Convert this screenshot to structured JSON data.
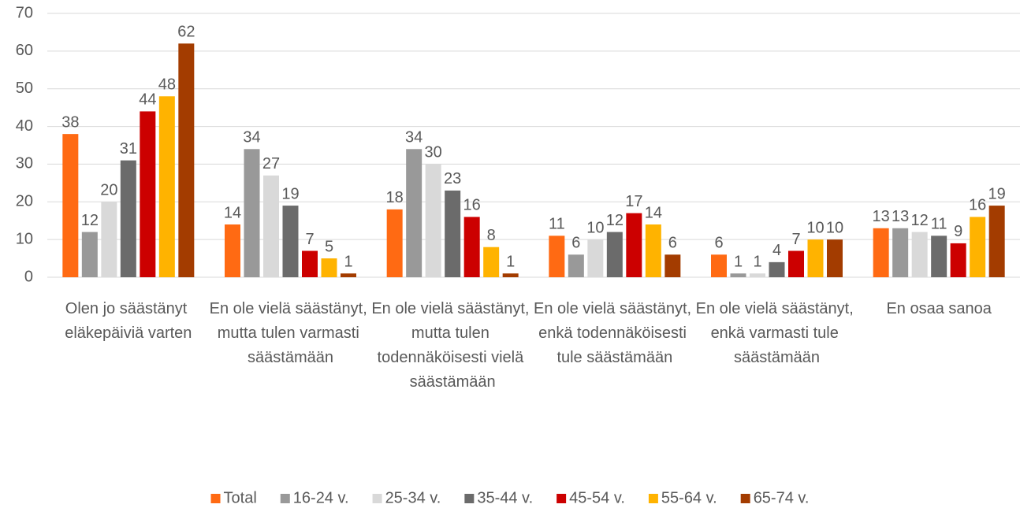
{
  "chart_data": {
    "type": "bar",
    "categories": [
      "Olen jo säästänyt eläkepäiviä varten",
      "En ole vielä säästänyt, mutta tulen varmasti säästämään",
      "En ole vielä säästänyt, mutta tulen todennäköisesti vielä säästämään",
      "En ole vielä säästänyt, enkä todennäköisesti tule säästämään",
      "En ole vielä säästänyt, enkä varmasti tule säästämään",
      "En osaa sanoa"
    ],
    "series": [
      {
        "name": "Total",
        "color": "#ff6a13",
        "values": [
          38,
          14,
          18,
          11,
          6,
          13
        ]
      },
      {
        "name": "16-24 v.",
        "color": "#999999",
        "values": [
          12,
          34,
          34,
          6,
          1,
          13
        ]
      },
      {
        "name": "25-34 v.",
        "color": "#d9d9d9",
        "values": [
          20,
          27,
          30,
          10,
          1,
          12
        ]
      },
      {
        "name": "35-44 v.",
        "color": "#6b6b6b",
        "values": [
          31,
          19,
          23,
          12,
          4,
          11
        ]
      },
      {
        "name": "45-54 v.",
        "color": "#cc0000",
        "values": [
          44,
          7,
          16,
          17,
          7,
          9
        ]
      },
      {
        "name": "55-64 v.",
        "color": "#ffb300",
        "values": [
          48,
          5,
          8,
          14,
          10,
          16
        ]
      },
      {
        "name": "65-74 v.",
        "color": "#a33c00",
        "values": [
          62,
          1,
          1,
          6,
          10,
          19
        ]
      }
    ],
    "ylim": [
      0,
      70
    ],
    "yticks": [
      0,
      10,
      20,
      30,
      40,
      50,
      60,
      70
    ],
    "grid": true,
    "legend": "bottom"
  }
}
